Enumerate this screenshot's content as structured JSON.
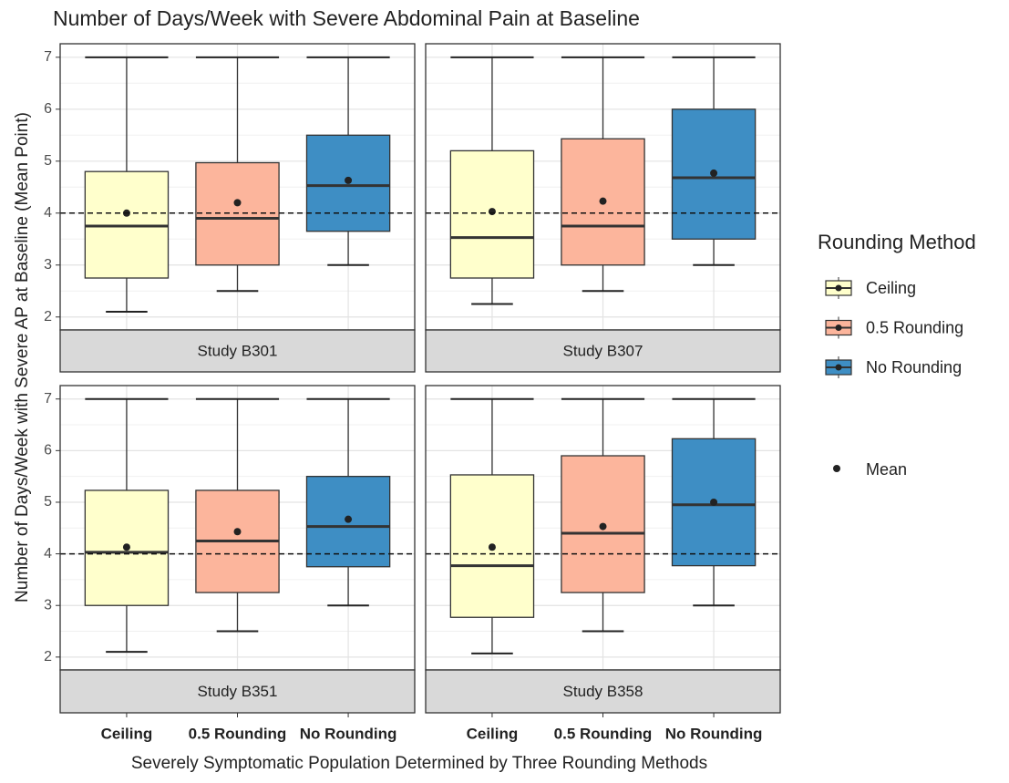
{
  "chart_data": {
    "type": "box",
    "title": "Number of Days/Week with Severe Abdominal Pain at Baseline",
    "x_label": "Severely Symptomatic Population Determined by Three Rounding Methods",
    "y_label": "Number of Days/Week with Severe AP at Baseline (Mean Point)",
    "legend_title": "Rounding Method",
    "mean_label": "Mean",
    "categories": [
      "Ceiling",
      "0.5 Rounding",
      "No Rounding"
    ],
    "colors": [
      "#ffffcc",
      "#fcb59c",
      "#3e8ec4"
    ],
    "ylim": [
      1.75,
      7.26
    ],
    "yticks": [
      2,
      3,
      4,
      5,
      6,
      7
    ],
    "grid": true,
    "reference_line": 4,
    "facets": [
      {
        "name": "Study B301",
        "boxes": [
          {
            "low": 2.1,
            "q1": 2.75,
            "median": 3.75,
            "q3": 4.8,
            "high": 7,
            "mean": 4.0
          },
          {
            "low": 2.5,
            "q1": 3.0,
            "median": 3.9,
            "q3": 4.97,
            "high": 7,
            "mean": 4.2
          },
          {
            "low": 3.0,
            "q1": 3.65,
            "median": 4.53,
            "q3": 5.5,
            "high": 7,
            "mean": 4.63
          }
        ]
      },
      {
        "name": "Study B307",
        "boxes": [
          {
            "low": 2.25,
            "q1": 2.75,
            "median": 3.53,
            "q3": 5.2,
            "high": 7,
            "mean": 4.03
          },
          {
            "low": 2.5,
            "q1": 3.0,
            "median": 3.75,
            "q3": 5.43,
            "high": 7,
            "mean": 4.23
          },
          {
            "low": 3.0,
            "q1": 3.5,
            "median": 4.68,
            "q3": 6.0,
            "high": 7,
            "mean": 4.77
          }
        ]
      },
      {
        "name": "Study B351",
        "boxes": [
          {
            "low": 2.1,
            "q1": 3.0,
            "median": 4.03,
            "q3": 5.23,
            "high": 7,
            "mean": 4.13
          },
          {
            "low": 2.5,
            "q1": 3.25,
            "median": 4.25,
            "q3": 5.23,
            "high": 7,
            "mean": 4.43
          },
          {
            "low": 3.0,
            "q1": 3.75,
            "median": 4.53,
            "q3": 5.5,
            "high": 7,
            "mean": 4.67
          }
        ]
      },
      {
        "name": "Study B358",
        "boxes": [
          {
            "low": 2.07,
            "q1": 2.77,
            "median": 3.77,
            "q3": 5.53,
            "high": 7,
            "mean": 4.13
          },
          {
            "low": 2.5,
            "q1": 3.25,
            "median": 4.4,
            "q3": 5.9,
            "high": 7,
            "mean": 4.53
          },
          {
            "low": 3.0,
            "q1": 3.77,
            "median": 4.95,
            "q3": 6.23,
            "high": 7,
            "mean": 5.0
          }
        ]
      }
    ]
  }
}
